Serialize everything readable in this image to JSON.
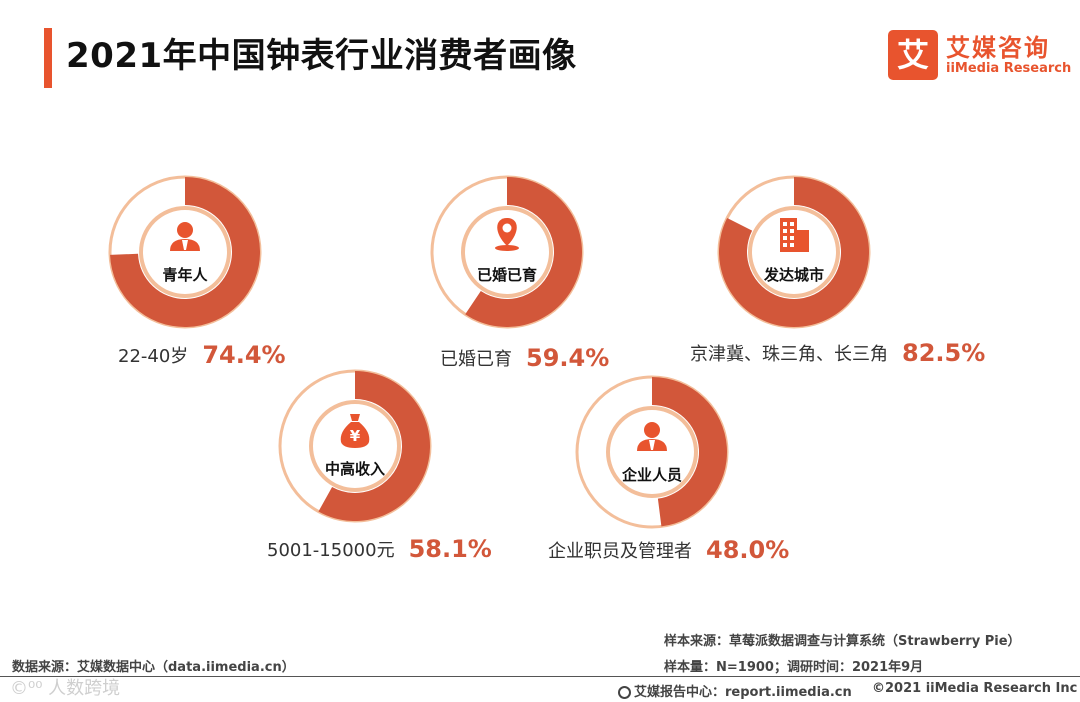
{
  "title": "2021年中国钟表行业消费者画像",
  "logo": {
    "mark": "艾",
    "name_cn": "艾媒咨询",
    "name_en": "iiMedia Research"
  },
  "colors": {
    "accent": "#E8542E",
    "donut_fill": "#D2573A",
    "donut_ring": "#F3BE9A",
    "value_text": "#D2573A"
  },
  "chart_data": {
    "type": "pie",
    "title": "2021年中国钟表行业消费者画像",
    "items": [
      {
        "center_label": "青年人",
        "icon": "person-icon",
        "description": "22-40岁",
        "value_label": "74.4%",
        "value": 74.4
      },
      {
        "center_label": "已婚已育",
        "icon": "location-pin-icon",
        "description": "已婚已育",
        "value_label": "59.4%",
        "value": 59.4
      },
      {
        "center_label": "发达城市",
        "icon": "building-icon",
        "description": "京津冀、珠三角、长三角",
        "value_label": "82.5%",
        "value": 82.5
      },
      {
        "center_label": "中高收入",
        "icon": "money-bag-icon",
        "description": "5001-15000元",
        "value_label": "58.1%",
        "value": 58.1
      },
      {
        "center_label": "企业人员",
        "icon": "business-person-icon",
        "description": "企业职员及管理者",
        "value_label": "48.0%",
        "value": 48.0
      }
    ]
  },
  "footer": {
    "source": "数据来源：艾媒数据中心（data.iimedia.cn）",
    "sample_source": "样本来源：草莓派数据调查与计算系统（Strawberry Pie）",
    "sample_info": "样本量：N=1900；调研时间：2021年9月",
    "report_center": "艾媒报告中心：report.iimedia.cn",
    "copyright": "©2021  iiMedia Research  Inc",
    "watermark": "©⁰⁰ 人数跨境"
  }
}
